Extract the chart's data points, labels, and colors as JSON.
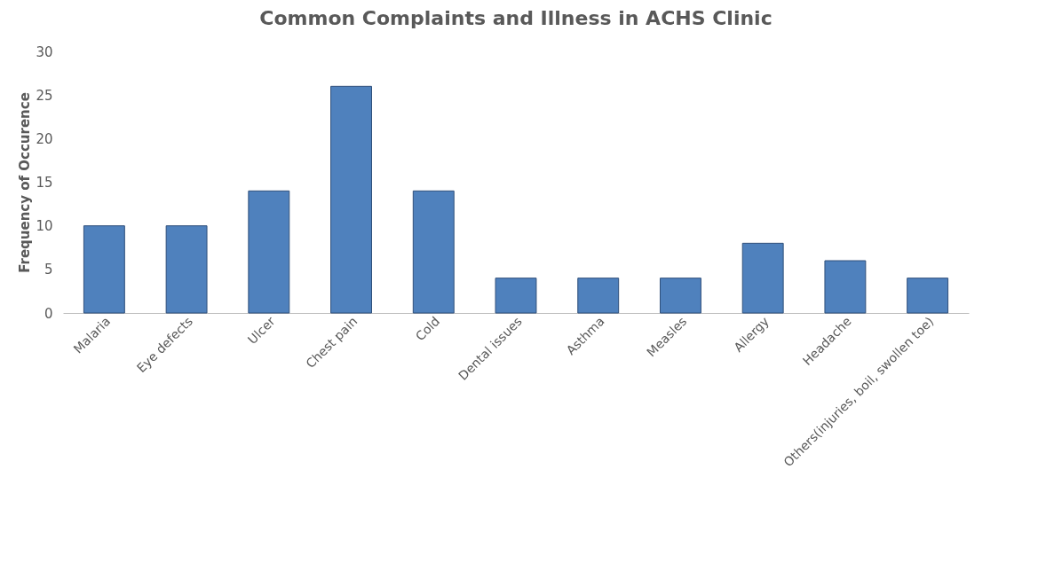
{
  "chart_data": {
    "type": "bar",
    "title": "Common Complaints and Illness in ACHS Clinic",
    "ylabel": "Frequency of Occurence",
    "categories": [
      "Malaria",
      "Eye defects",
      "Ulcer",
      "Chest pain",
      "Cold",
      "Dental issues",
      "Asthma",
      "Measles",
      "Allergy",
      "Headache",
      "Others(injuries, boil, swollen toe)"
    ],
    "values": [
      10,
      10,
      14,
      26,
      14,
      4,
      4,
      4,
      8,
      6,
      4
    ],
    "color": "#4f81bd",
    "ylim": [
      0,
      30
    ],
    "yticks": [
      0,
      5,
      10,
      15,
      20,
      25,
      30
    ],
    "grid": false
  }
}
